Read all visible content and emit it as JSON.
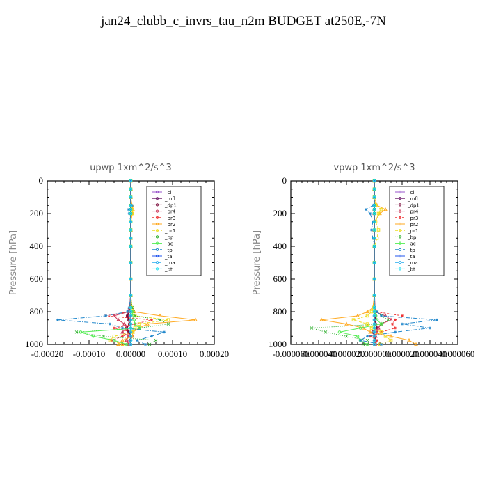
{
  "title": "jan24_clubb_c_invrs_tau_n2m  BUDGET at250E,-7N",
  "legend_labels": [
    "_cl",
    "_mfl",
    "_dp1",
    "_pr4",
    "_pr3",
    "_pr2",
    "_pr1",
    "_bp",
    "_ac",
    "_tp",
    "_ta",
    "_ma",
    "_bt"
  ],
  "series_colors": {
    "_cl": "#9955cc",
    "_mfl": "#6a1a6a",
    "_dp1": "#7a0a3a",
    "_pr4": "#cc3355",
    "_pr3": "#ee3333",
    "_pr2": "#ffaa22",
    "_pr1": "#eedd22",
    "_bp": "#22aa22",
    "_ac": "#55ee55",
    "_tp": "#2288cc",
    "_ta": "#2255ee",
    "_ma": "#22aaee",
    "_bt": "#22ddee"
  },
  "chart_data": [
    {
      "type": "line",
      "title": "upwp   1xm^2/s^3",
      "ylabel": "Pressure [hPa]",
      "xlim": [
        -0.0002,
        0.0002
      ],
      "ylim": [
        1000,
        0
      ],
      "x_ticks": [
        "-0.00020",
        "-0.00010",
        "0.00000",
        "0.00010",
        "0.00020"
      ],
      "y_ticks": [
        "0",
        "200",
        "400",
        "600",
        "800",
        "1000"
      ],
      "legend_position": "top-right",
      "y": [
        0,
        50,
        100,
        150,
        175,
        200,
        250,
        300,
        350,
        400,
        500,
        600,
        700,
        775,
        800,
        825,
        850,
        875,
        900,
        925,
        950,
        975,
        1000
      ],
      "series": [
        {
          "name": "_cl",
          "values": [
            0,
            0,
            0,
            0,
            0,
            0,
            0,
            0,
            0,
            0,
            0,
            0,
            0,
            0,
            0,
            0,
            0,
            0,
            0,
            0,
            0,
            0,
            0
          ]
        },
        {
          "name": "_mfl",
          "values": [
            0,
            0,
            0,
            0,
            0,
            0,
            0,
            0,
            0,
            0,
            0,
            0,
            0,
            0,
            0,
            0,
            0,
            0,
            0,
            0,
            0,
            0,
            0
          ]
        },
        {
          "name": "_dp1",
          "values": [
            0,
            0,
            0,
            0,
            0,
            0,
            0,
            0,
            0,
            0,
            0,
            0,
            0,
            -2e-06,
            -5e-06,
            -8e-06,
            -5e-06,
            -3e-06,
            -1e-05,
            -5e-06,
            3e-06,
            -2e-06,
            0
          ]
        },
        {
          "name": "_pr4",
          "values": [
            0,
            0,
            0,
            0,
            0,
            0,
            0,
            0,
            0,
            0,
            0,
            0,
            0,
            -3e-06,
            -5e-06,
            -4e-05,
            -3e-05,
            -1.5e-05,
            -1e-05,
            -2e-05,
            -5e-06,
            -1e-05,
            -5e-06
          ]
        },
        {
          "name": "_pr3",
          "values": [
            0,
            0,
            0,
            0,
            0,
            0,
            0,
            0,
            0,
            0,
            0,
            0,
            0,
            -2e-06,
            -5e-06,
            -6e-05,
            5e-05,
            1e-05,
            -4e-05,
            3e-06,
            -2e-05,
            -4.5e-05,
            -2e-05
          ]
        },
        {
          "name": "_pr2",
          "values": [
            0,
            0,
            0,
            3e-06,
            5e-06,
            4e-06,
            0,
            0,
            0,
            0,
            0,
            0,
            0,
            3e-06,
            8e-06,
            7e-05,
            0.000155,
            4e-05,
            2e-05,
            5e-06,
            4e-06,
            -2e-05,
            -3e-05
          ]
        },
        {
          "name": "_pr1",
          "values": [
            0,
            0,
            0,
            0,
            4e-06,
            3e-06,
            0,
            0,
            0,
            0,
            0,
            0,
            0,
            2e-06,
            5e-06,
            1e-05,
            9e-05,
            2e-05,
            1e-05,
            5e-06,
            -4e-05,
            -5e-05,
            -2e-05
          ]
        },
        {
          "name": "_bp",
          "values": [
            0,
            0,
            0,
            0,
            0,
            0,
            0,
            0,
            0,
            0,
            0,
            0,
            0,
            3e-06,
            6e-06,
            1e-05,
            7e-05,
            9e-05,
            2e-05,
            -0.00013,
            -6.5e-05,
            6e-05,
            4.5e-05
          ]
        },
        {
          "name": "_ac",
          "values": [
            0,
            0,
            0,
            0,
            0,
            0,
            0,
            0,
            0,
            0,
            0,
            0,
            0,
            0,
            3e-06,
            5e-06,
            8e-06,
            1e-05,
            2e-05,
            -0.00012,
            -9e-05,
            -4e-05,
            -1e-05
          ]
        },
        {
          "name": "_tp",
          "values": [
            0,
            0,
            0,
            3e-06,
            -5e-06,
            -4e-06,
            0,
            0,
            0,
            0,
            0,
            0,
            0,
            -4e-06,
            -8e-06,
            -6e-05,
            -0.000175,
            -5e-05,
            -2e-05,
            8e-05,
            5e-05,
            1.5e-05,
            3.5e-05
          ]
        },
        {
          "name": "_ta",
          "values": [
            0,
            0,
            0,
            0,
            0,
            0,
            0,
            0,
            0,
            0,
            0,
            0,
            0,
            0,
            0,
            0,
            0,
            0,
            0,
            0,
            0,
            0,
            0
          ]
        },
        {
          "name": "_ma",
          "values": [
            0,
            0,
            0,
            0,
            0,
            0,
            0,
            0,
            0,
            0,
            0,
            0,
            0,
            0,
            0,
            0,
            0,
            0,
            0,
            0,
            0,
            0,
            0
          ]
        },
        {
          "name": "_bt",
          "values": [
            0,
            0,
            0,
            0,
            0,
            0,
            0,
            0,
            0,
            0,
            0,
            0,
            0,
            0,
            0,
            0,
            0,
            0,
            0,
            0,
            0,
            0,
            0
          ]
        }
      ]
    },
    {
      "type": "line",
      "title": "vpwp   1xm^2/s^3",
      "ylabel": "Pressure [hPa]",
      "xlim": [
        -0.0006,
        0.0006
      ],
      "ylim": [
        1000,
        0
      ],
      "x_ticks": [
        "-0.000060",
        "-0.000040",
        "-0.000020",
        "0.000000",
        "0.000020",
        "0.000040",
        "0.000060"
      ],
      "y_ticks": [
        "0",
        "200",
        "400",
        "600",
        "800",
        "1000"
      ],
      "legend_position": "top-right",
      "y": [
        0,
        50,
        100,
        150,
        175,
        200,
        250,
        300,
        350,
        400,
        500,
        600,
        700,
        775,
        800,
        825,
        850,
        875,
        900,
        925,
        950,
        975,
        1000
      ],
      "series": [
        {
          "name": "_cl",
          "values": [
            0,
            0,
            0,
            0,
            0,
            0,
            0,
            0,
            0,
            0,
            0,
            0,
            0,
            0,
            0,
            0,
            0,
            0,
            0,
            0,
            0,
            0,
            0
          ]
        },
        {
          "name": "_mfl",
          "values": [
            0,
            0,
            0,
            0,
            0,
            0,
            0,
            0,
            0,
            0,
            0,
            0,
            0,
            0,
            0,
            0,
            0,
            0,
            0,
            0,
            0,
            0,
            0
          ]
        },
        {
          "name": "_dp1",
          "values": [
            0,
            0,
            0,
            0,
            0,
            0,
            0,
            0,
            0,
            0,
            0,
            0,
            0,
            3e-06,
            5e-06,
            1e-05,
            5e-06,
            8e-06,
            2e-05,
            -1e-05,
            5e-06,
            3e-06,
            0
          ]
        },
        {
          "name": "_pr4",
          "values": [
            0,
            0,
            0,
            0,
            0,
            0,
            0,
            0,
            0,
            0,
            0,
            0,
            0,
            2e-06,
            5e-06,
            8e-05,
            0.00012,
            5e-05,
            3e-05,
            2e-05,
            1e-05,
            1e-05,
            5e-06
          ]
        },
        {
          "name": "_pr3",
          "values": [
            0,
            0,
            0,
            0,
            0,
            0,
            0,
            0,
            0,
            0,
            0,
            0,
            0,
            2e-06,
            8e-06,
            0.0002,
            0.00015,
            0.00013,
            0.00015,
            5e-05,
            -3e-05,
            2e-05,
            1e-05
          ]
        },
        {
          "name": "_pr2",
          "values": [
            0,
            0,
            0,
            2e-05,
            8e-05,
            4e-05,
            0,
            0,
            0,
            0,
            0,
            0,
            0,
            -1e-05,
            -5e-05,
            -0.00012,
            -0.00038,
            -0.0002,
            -8e-05,
            -3e-05,
            0.00012,
            0.00025,
            0.0003
          ]
        },
        {
          "name": "_pr1",
          "values": [
            0,
            0,
            0,
            1e-05,
            5e-05,
            3e-05,
            1e-05,
            3e-05,
            2e-05,
            0,
            0,
            0,
            0,
            -5e-06,
            -2e-05,
            -5e-05,
            -0.00015,
            -5e-05,
            -2e-05,
            5e-05,
            8e-05,
            0.00012,
            4e-05
          ]
        },
        {
          "name": "_bp",
          "values": [
            0,
            0,
            0,
            0,
            0,
            0,
            0,
            0,
            0,
            0,
            0,
            0,
            0,
            3e-06,
            2e-05,
            5e-05,
            0.0001,
            5e-05,
            -0.00045,
            -0.00035,
            -0.0002,
            -5e-05,
            -8e-05
          ]
        },
        {
          "name": "_ac",
          "values": [
            0,
            0,
            0,
            0,
            0,
            0,
            0,
            0,
            0,
            0,
            0,
            0,
            0,
            0,
            5e-06,
            1e-05,
            2e-05,
            5e-05,
            -0.0001,
            -0.00025,
            -0.00012,
            -0.0001,
            -5e-05
          ]
        },
        {
          "name": "_tp",
          "values": [
            0,
            0,
            0,
            -1e-05,
            -6e-05,
            -3e-05,
            -1e-05,
            -2e-05,
            -1e-05,
            0,
            0,
            0,
            0,
            5e-06,
            2e-05,
            5e-05,
            0.00045,
            0.0002,
            0.0004,
            0.00015,
            -5e-05,
            -0.0001,
            5e-05
          ]
        },
        {
          "name": "_ta",
          "values": [
            0,
            0,
            0,
            0,
            0,
            0,
            0,
            0,
            0,
            0,
            0,
            0,
            0,
            0,
            0,
            0,
            0,
            0,
            0,
            0,
            0,
            0,
            0
          ]
        },
        {
          "name": "_ma",
          "values": [
            0,
            0,
            0,
            0,
            0,
            0,
            0,
            0,
            0,
            0,
            0,
            0,
            0,
            0,
            0,
            0,
            0,
            0,
            0,
            0,
            0,
            0,
            0
          ]
        },
        {
          "name": "_bt",
          "values": [
            0,
            0,
            0,
            0,
            0,
            0,
            0,
            0,
            0,
            0,
            0,
            0,
            0,
            0,
            0,
            0,
            0,
            0,
            0,
            0,
            0,
            0,
            0
          ]
        }
      ]
    }
  ]
}
